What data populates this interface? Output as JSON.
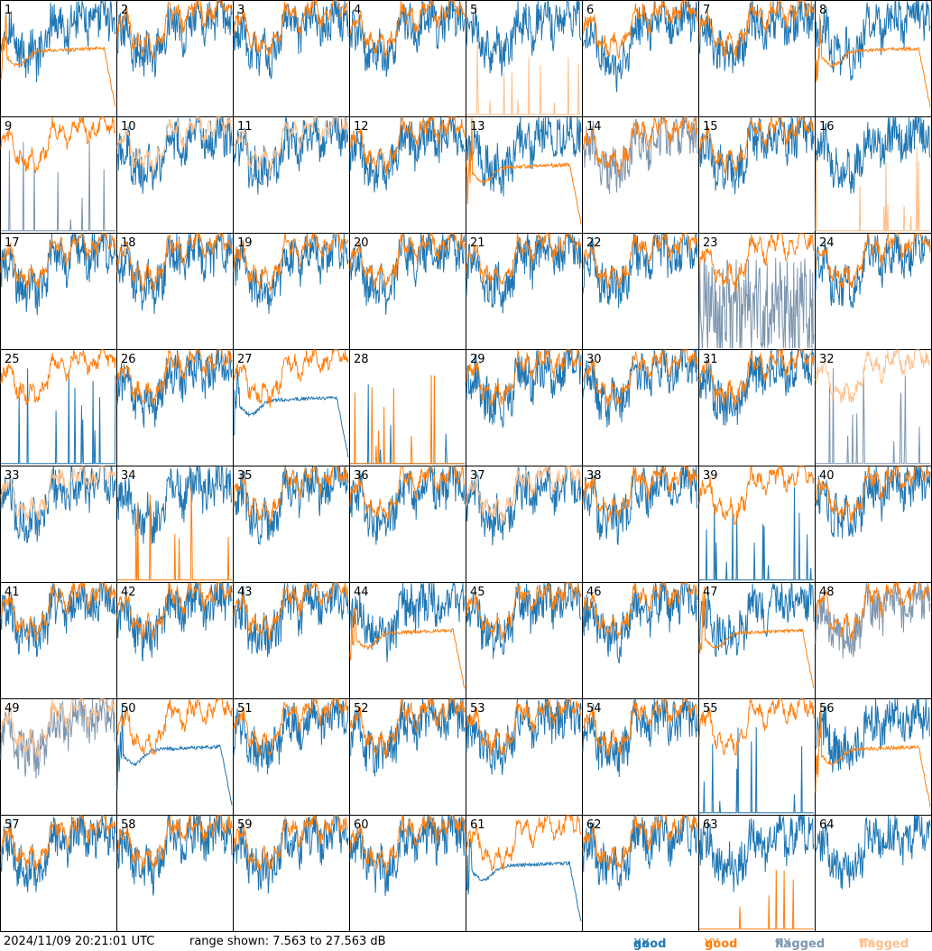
{
  "timestamp": "2024/11/09 20:21:01 UTC",
  "range_text": "range shown: 7.563 to 27.563 dB",
  "legend": [
    {
      "text": "good",
      "glyph": "XX",
      "color": "#1f77b4"
    },
    {
      "text": "good",
      "glyph": "YY",
      "color": "#ff7f0e"
    },
    {
      "text": "flagged",
      "glyph": "XX",
      "color": "#7d96b0"
    },
    {
      "text": "flagged",
      "glyph": "YY",
      "color": "#ffbf8a"
    }
  ],
  "chart_data": {
    "type": "line",
    "layout": "small-multiples 8x8",
    "ylim": [
      7.563,
      27.563
    ],
    "yunit": "dB",
    "series_styles": {
      "good XX": "#1f77b4",
      "good YY": "#ff7f0e",
      "flagged XX": "#7d96b0",
      "flagged YY": "#ffbf8a"
    },
    "panels": [
      {
        "id": 1,
        "xx": "good",
        "yy": "good",
        "yy_shape": "hump"
      },
      {
        "id": 2,
        "xx": "good",
        "yy": "good"
      },
      {
        "id": 3,
        "xx": "good",
        "yy": "good"
      },
      {
        "id": 4,
        "xx": "good",
        "yy": "good"
      },
      {
        "id": 5,
        "xx": "good",
        "yy": "flagged",
        "yy_shape": "spikes"
      },
      {
        "id": 6,
        "xx": "good",
        "yy": "good",
        "xx_shape": "deep"
      },
      {
        "id": 7,
        "xx": "good",
        "yy": "good"
      },
      {
        "id": 8,
        "xx": "good",
        "yy": "good",
        "yy_shape": "hump"
      },
      {
        "id": 9,
        "xx": "flagged",
        "yy": "good",
        "xx_shape": "spikes"
      },
      {
        "id": 10,
        "xx": "good",
        "yy": "flagged"
      },
      {
        "id": 11,
        "xx": "good",
        "yy": "flagged"
      },
      {
        "id": 12,
        "xx": "good",
        "yy": "good"
      },
      {
        "id": 13,
        "xx": "good",
        "yy": "good",
        "yy_shape": "hump"
      },
      {
        "id": 14,
        "xx": "flagged",
        "yy": "good"
      },
      {
        "id": 15,
        "xx": "good",
        "yy": "good"
      },
      {
        "id": 16,
        "xx": "good",
        "yy": "flagged",
        "yy_shape": "spikes"
      },
      {
        "id": 17,
        "xx": "good",
        "yy": "good"
      },
      {
        "id": 18,
        "xx": "good",
        "yy": "good"
      },
      {
        "id": 19,
        "xx": "good",
        "yy": "good"
      },
      {
        "id": 20,
        "xx": "good",
        "yy": "good"
      },
      {
        "id": 21,
        "xx": "good",
        "yy": "good"
      },
      {
        "id": 22,
        "xx": "good",
        "yy": "good"
      },
      {
        "id": 23,
        "xx": "flagged",
        "yy": "good",
        "xx_shape": "noisy"
      },
      {
        "id": 24,
        "xx": "good",
        "yy": "good"
      },
      {
        "id": 25,
        "xx": "good",
        "yy": "good",
        "xx_shape": "spikes"
      },
      {
        "id": 26,
        "xx": "good",
        "yy": "good"
      },
      {
        "id": 27,
        "xx": "good",
        "yy": "good",
        "xx_shape": "hump"
      },
      {
        "id": 28,
        "xx": "good",
        "yy": "good",
        "yy_shape": "spikes",
        "xx_shape": "spikes"
      },
      {
        "id": 29,
        "xx": "good",
        "yy": "good"
      },
      {
        "id": 30,
        "xx": "good",
        "yy": "good"
      },
      {
        "id": 31,
        "xx": "good",
        "yy": "good"
      },
      {
        "id": 32,
        "xx": "flagged",
        "yy": "flagged",
        "xx_shape": "spikes"
      },
      {
        "id": 33,
        "xx": "good",
        "yy": "flagged"
      },
      {
        "id": 34,
        "xx": "good",
        "yy": "good",
        "yy_shape": "spikes"
      },
      {
        "id": 35,
        "xx": "good",
        "yy": "good"
      },
      {
        "id": 36,
        "xx": "good",
        "yy": "good"
      },
      {
        "id": 37,
        "xx": "good",
        "yy": "flagged"
      },
      {
        "id": 38,
        "xx": "good",
        "yy": "good"
      },
      {
        "id": 39,
        "xx": "good",
        "yy": "good",
        "xx_shape": "spikes"
      },
      {
        "id": 40,
        "xx": "good",
        "yy": "good"
      },
      {
        "id": 41,
        "xx": "good",
        "yy": "good"
      },
      {
        "id": 42,
        "xx": "good",
        "yy": "good"
      },
      {
        "id": 43,
        "xx": "good",
        "yy": "good"
      },
      {
        "id": 44,
        "xx": "good",
        "yy": "good",
        "yy_shape": "hump"
      },
      {
        "id": 45,
        "xx": "good",
        "yy": "good"
      },
      {
        "id": 46,
        "xx": "good",
        "yy": "good"
      },
      {
        "id": 47,
        "xx": "good",
        "yy": "good",
        "yy_shape": "hump"
      },
      {
        "id": 48,
        "xx": "flagged",
        "yy": "good"
      },
      {
        "id": 49,
        "xx": "flagged",
        "yy": "flagged"
      },
      {
        "id": 50,
        "xx": "good",
        "yy": "good",
        "xx_shape": "hump"
      },
      {
        "id": 51,
        "xx": "good",
        "yy": "good"
      },
      {
        "id": 52,
        "xx": "good",
        "yy": "good"
      },
      {
        "id": 53,
        "xx": "good",
        "yy": "good"
      },
      {
        "id": 54,
        "xx": "good",
        "yy": "good"
      },
      {
        "id": 55,
        "xx": "good",
        "yy": "good",
        "xx_shape": "spikes"
      },
      {
        "id": 56,
        "xx": "good",
        "yy": "good",
        "yy_shape": "hump"
      },
      {
        "id": 57,
        "xx": "good",
        "yy": "good"
      },
      {
        "id": 58,
        "xx": "good",
        "yy": "good"
      },
      {
        "id": 59,
        "xx": "good",
        "yy": "good"
      },
      {
        "id": 60,
        "xx": "good",
        "yy": "good"
      },
      {
        "id": 61,
        "xx": "good",
        "yy": "good",
        "xx_shape": "hump"
      },
      {
        "id": 62,
        "xx": "good",
        "yy": "good"
      },
      {
        "id": 63,
        "xx": "good",
        "yy": "good",
        "yy_shape": "spikes"
      },
      {
        "id": 64,
        "xx": "good",
        "yy": "none"
      }
    ]
  }
}
